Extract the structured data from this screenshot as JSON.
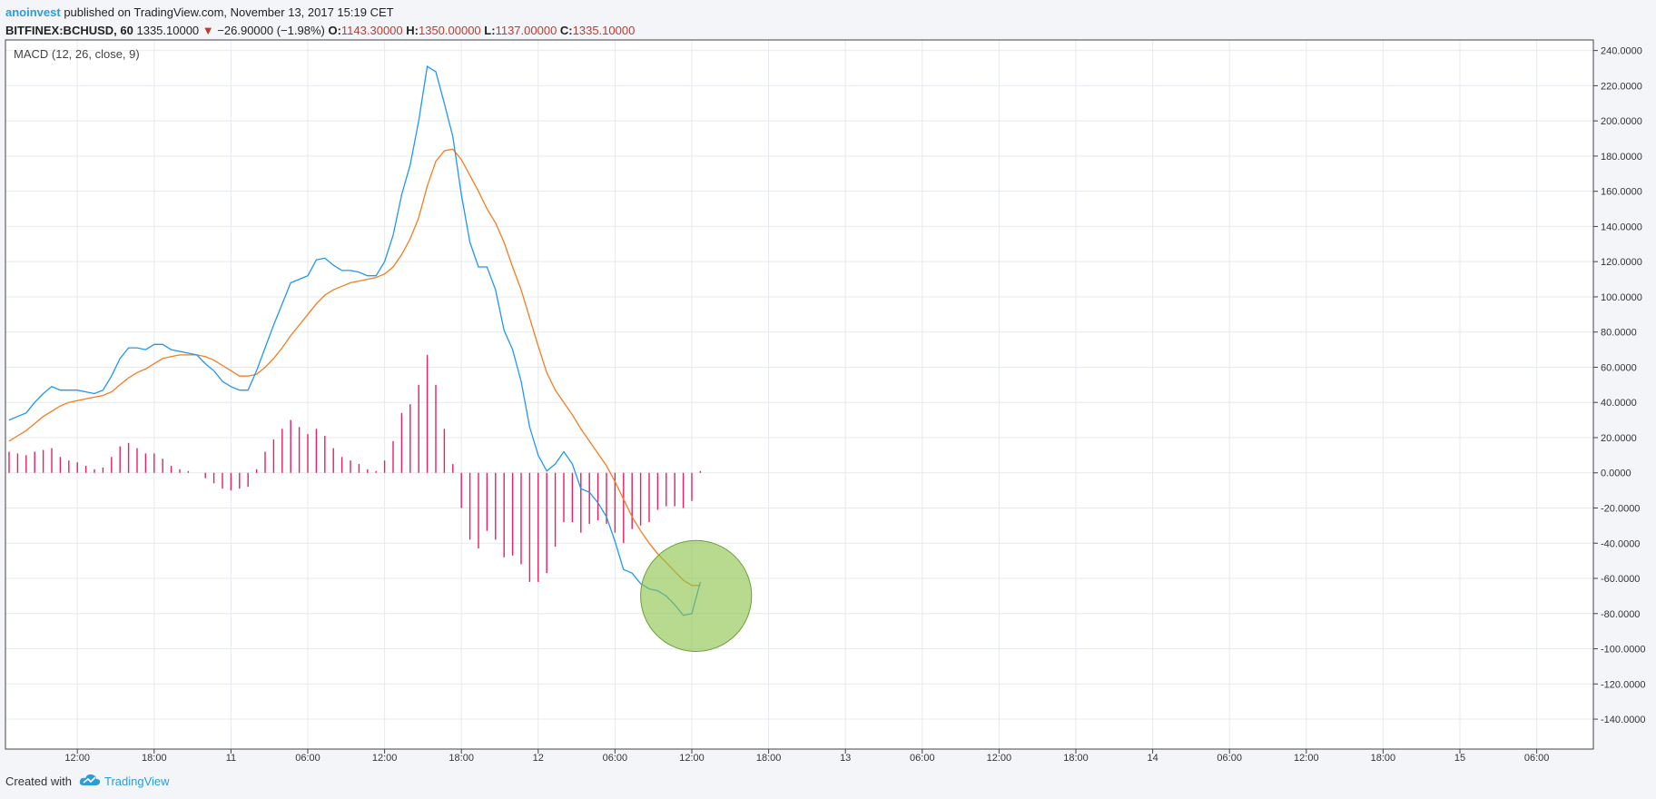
{
  "header": {
    "author": "anoinvest",
    "published": "published on TradingView.com, November 13, 2017 15:19 CET",
    "symbol": "BITFINEX:BCHUSD, 60",
    "last": "1335.10000",
    "arrow": "▼",
    "change": "−26.90000 (−1.98%)",
    "o_label": "O:",
    "o_value": "1143.30000",
    "h_label": "H:",
    "h_value": "1350.00000",
    "l_label": "L:",
    "l_value": "1137.00000",
    "c_label": "C:",
    "c_value": "1335.10000"
  },
  "footer": {
    "created_with": "Created with",
    "brand": "TradingView"
  },
  "colors": {
    "macd": "#2196f3",
    "signal": "#f57c20",
    "histogram": "#e91e63",
    "highlight_fill": "#8bc34a",
    "grid": "#e6e9ee"
  },
  "chart_data": {
    "type": "line",
    "indicator_label": "MACD (12, 26, close, 9)",
    "ylim": [
      -157,
      246
    ],
    "xlim": [
      0,
      187
    ],
    "y_ticks": [
      240,
      220,
      200,
      180,
      160,
      140,
      120,
      100,
      80,
      60,
      40,
      20,
      0,
      -20,
      -40,
      -60,
      -80,
      -100,
      -120,
      -140
    ],
    "y_tick_labels": [
      "240.0000",
      "220.0000",
      "200.0000",
      "180.0000",
      "160.0000",
      "140.0000",
      "120.0000",
      "100.0000",
      "80.0000",
      "60.0000",
      "40.0000",
      "20.0000",
      "0.0000",
      "-20.0000",
      "-40.0000",
      "-60.0000",
      "-80.0000",
      "-100.0000",
      "-120.0000",
      "-140.0000"
    ],
    "x_ticks": [
      {
        "x": 8,
        "label": "12:00"
      },
      {
        "x": 17,
        "label": "18:00"
      },
      {
        "x": 26,
        "label": "11"
      },
      {
        "x": 35,
        "label": "06:00"
      },
      {
        "x": 44,
        "label": "12:00"
      },
      {
        "x": 53,
        "label": "18:00"
      },
      {
        "x": 62,
        "label": "12"
      },
      {
        "x": 71,
        "label": "06:00"
      },
      {
        "x": 80,
        "label": "12:00"
      },
      {
        "x": 89,
        "label": "18:00"
      },
      {
        "x": 98,
        "label": "13"
      },
      {
        "x": 107,
        "label": "06:00"
      },
      {
        "x": 116,
        "label": "12:00"
      },
      {
        "x": 125,
        "label": "18:00"
      },
      {
        "x": 134,
        "label": "14"
      },
      {
        "x": 143,
        "label": "06:00"
      },
      {
        "x": 152,
        "label": "12:00"
      },
      {
        "x": 161,
        "label": "18:00"
      },
      {
        "x": 170,
        "label": "15"
      },
      {
        "x": 179,
        "label": "06:00"
      }
    ],
    "series": [
      {
        "id": "macd",
        "values": [
          30,
          32,
          34,
          40,
          45,
          49,
          47,
          47,
          47,
          46,
          45,
          47,
          55,
          65,
          71,
          71,
          70,
          73,
          73,
          70,
          69,
          68,
          67,
          62,
          58,
          52,
          49,
          47,
          47,
          58,
          71,
          84,
          96,
          108,
          110,
          112,
          121,
          122,
          118,
          115,
          115,
          114,
          112,
          112,
          120,
          135,
          158,
          175,
          200,
          231,
          228,
          210,
          191,
          158,
          131,
          117,
          117,
          104,
          81,
          70,
          52,
          26,
          10,
          1,
          5,
          12,
          5,
          -9,
          -11,
          -17,
          -25,
          -39,
          -55,
          -57,
          -63,
          -66,
          -67,
          -70,
          -75,
          -81,
          -80,
          -62
        ]
      },
      {
        "id": "signal",
        "values": [
          18,
          21,
          24,
          28,
          32,
          35,
          38,
          40,
          41,
          42,
          43,
          44,
          46,
          50,
          54,
          57,
          59,
          62,
          65,
          66,
          67,
          67,
          67,
          66,
          64,
          61,
          58,
          55,
          55,
          56,
          60,
          65,
          71,
          78,
          84,
          90,
          96,
          101,
          104,
          106,
          108,
          109,
          110,
          111,
          113,
          117,
          124,
          133,
          145,
          163,
          177,
          183,
          184,
          178,
          169,
          160,
          150,
          142,
          131,
          117,
          104,
          88,
          72,
          57,
          47,
          40,
          33,
          25,
          18,
          11,
          4,
          -5,
          -15,
          -25,
          -33,
          -40,
          -46,
          -51,
          -56,
          -61,
          -64,
          -64
        ]
      },
      {
        "id": "histogram",
        "values": [
          12,
          11,
          10,
          12,
          13,
          14,
          9,
          7,
          6,
          4,
          2,
          3,
          9,
          15,
          17,
          14,
          11,
          11,
          8,
          4,
          2,
          1,
          0,
          -3,
          -6,
          -9,
          -10,
          -9,
          -8,
          2,
          12,
          19,
          25,
          30,
          26,
          22,
          25,
          21,
          14,
          9,
          7,
          5,
          2,
          1,
          7,
          18,
          34,
          39,
          50,
          67,
          50,
          25,
          5,
          -20,
          -38,
          -43,
          -33,
          -38,
          -48,
          -47,
          -52,
          -62,
          -62,
          -57,
          -42,
          -28,
          -28,
          -34,
          -29,
          -27,
          -29,
          -34,
          -40,
          -32,
          -30,
          -28,
          -21,
          -19,
          -19,
          -20,
          -16,
          1
        ]
      }
    ],
    "annotations": [
      {
        "type": "circle",
        "cx": 80.5,
        "cy": -70,
        "r_x": 6.5,
        "color": "#8bc34a"
      }
    ]
  }
}
